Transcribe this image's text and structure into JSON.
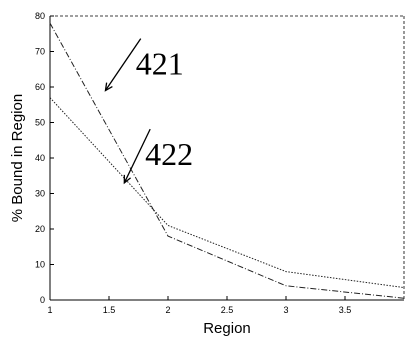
{
  "chart_data": {
    "type": "line",
    "title": "",
    "xlabel": "Region",
    "ylabel": "% Bound in Region",
    "xlim": [
      1,
      4
    ],
    "ylim": [
      0,
      80
    ],
    "xticks": [
      1,
      1.5,
      2,
      2.5,
      3,
      3.5
    ],
    "xtick_labels": [
      "1",
      "1.5",
      "2",
      "2.5",
      "3",
      "3.5"
    ],
    "yticks": [
      0,
      10,
      20,
      30,
      40,
      50,
      60,
      70,
      80
    ],
    "ytick_labels": [
      "0",
      "10",
      "20",
      "30",
      "40",
      "50",
      "60",
      "70",
      "80"
    ],
    "grid": false,
    "series": [
      {
        "name": "421",
        "x": [
          1,
          2,
          3,
          4
        ],
        "values": [
          78,
          18,
          4,
          0.5
        ]
      },
      {
        "name": "422",
        "x": [
          1,
          2,
          3,
          4
        ],
        "values": [
          57,
          21,
          8,
          3.5
        ]
      }
    ],
    "annotations": [
      {
        "text": "421",
        "series": "421",
        "point_to": [
          1.47,
          59
        ],
        "label_at": [
          1.93,
          63.5
        ]
      },
      {
        "text": "422",
        "series": "422",
        "point_to": [
          1.63,
          33
        ],
        "label_at": [
          2.01,
          38
        ]
      }
    ]
  }
}
